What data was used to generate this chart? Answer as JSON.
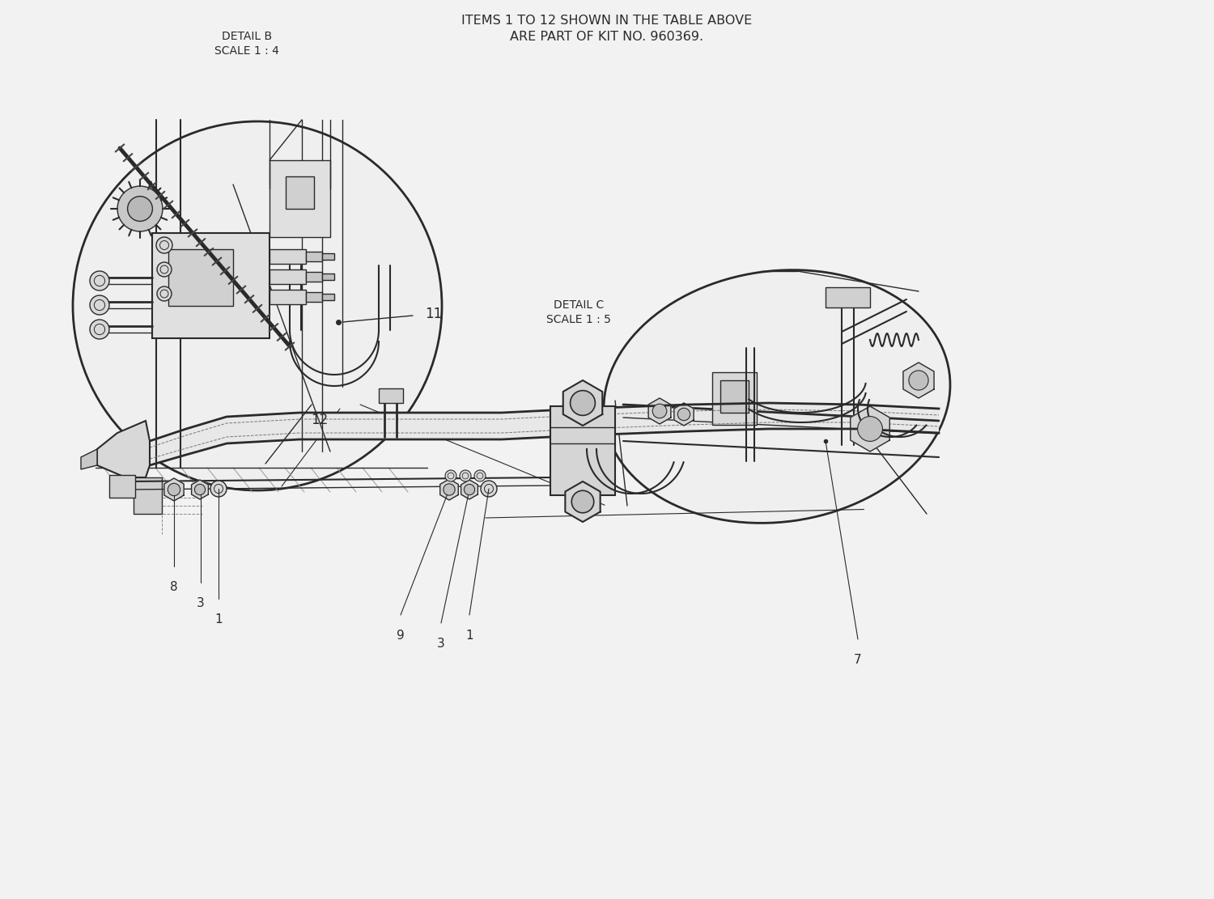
{
  "bg_color": "#f0f0f0",
  "header_line1": "ITEMS 1 TO 12 SHOWN IN THE TABLE ABOVE",
  "header_line2": "ARE PART OF KIT NO. 960369.",
  "detail_b_text1": "DETAIL B",
  "detail_b_text2": "SCALE 1 : 4",
  "detail_c_text1": "DETAIL C",
  "detail_c_text2": "SCALE 1 : 5",
  "line_color": "#2a2a2a",
  "bg_white": "#f2f2f2",
  "font_size_header": 11.5,
  "font_size_label": 10,
  "font_size_part": 11
}
